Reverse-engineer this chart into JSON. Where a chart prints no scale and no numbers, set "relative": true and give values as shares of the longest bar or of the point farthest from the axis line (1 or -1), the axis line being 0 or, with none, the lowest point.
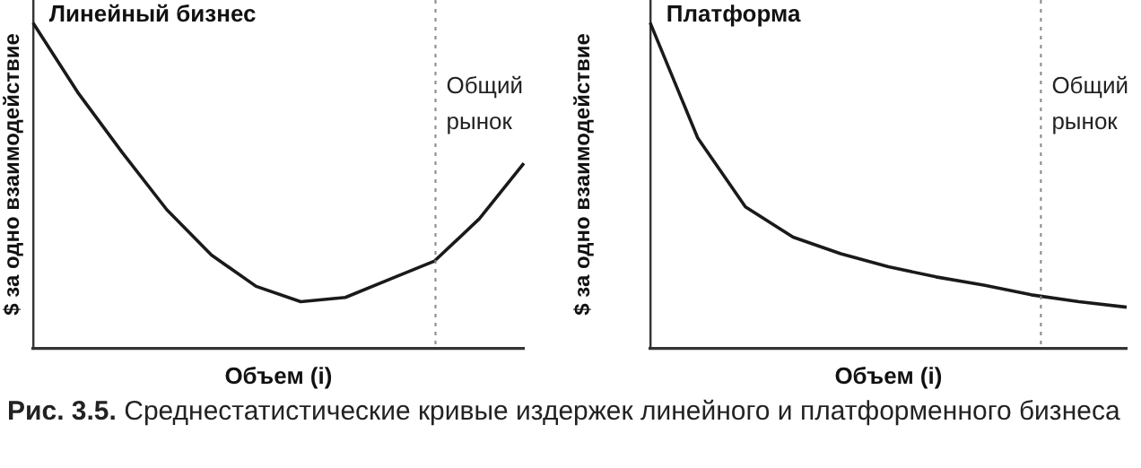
{
  "chart_data": [
    {
      "type": "line",
      "title": "Линейный бизнес",
      "xlabel": "Объем (i)",
      "ylabel": "$ за одно взаимодействие",
      "relative": true,
      "marker": "none",
      "line_style": "solid",
      "categories": [
        null,
        null,
        null,
        null,
        null,
        null,
        null,
        null,
        null,
        null,
        null,
        null
      ],
      "series": [
        {
          "color": "#1a1a1a",
          "values": [
            1,
            0.787,
            0.602,
            0.426,
            0.287,
            0.191,
            0.144,
            0.157,
            0.213,
            0.269,
            0.398,
            0.569
          ]
        }
      ],
      "annotations": [
        "Общий рынок"
      ]
    },
    {
      "type": "line",
      "title": "Платформа",
      "xlabel": "Объем (i)",
      "ylabel": "$ за одно взаимодействие",
      "relative": true,
      "marker": "none",
      "line_style": "solid",
      "categories": [
        null,
        null,
        null,
        null,
        null,
        null,
        null,
        null,
        null,
        null,
        null
      ],
      "series": [
        {
          "color": "#1a1a1a",
          "values": [
            1,
            0.646,
            0.435,
            0.342,
            0.291,
            0.251,
            0.22,
            0.195,
            0.165,
            0.144,
            0.127
          ]
        }
      ],
      "annotations": [
        "Общий рынок",
        "Рис. 3.5. Среднестатистические кривые издержек линейного и платформенного бизнеса"
      ]
    }
  ]
}
